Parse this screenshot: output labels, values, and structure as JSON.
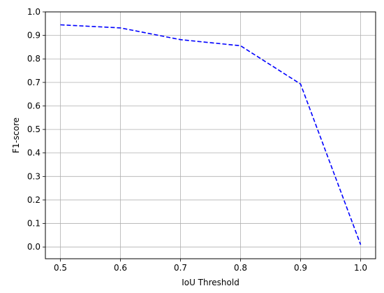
{
  "chart_data": {
    "type": "line",
    "title": "",
    "xlabel": "IoU Threshold",
    "ylabel": "F1-score",
    "xlim": [
      0.475,
      1.025
    ],
    "ylim": [
      -0.05,
      1.0
    ],
    "x_ticks": [
      0.5,
      0.6,
      0.7,
      0.8,
      0.9,
      1.0
    ],
    "x_tick_labels": [
      "0.5",
      "0.6",
      "0.7",
      "0.8",
      "0.9",
      "1.0"
    ],
    "y_ticks": [
      0.0,
      0.1,
      0.2,
      0.3,
      0.4,
      0.5,
      0.6,
      0.7,
      0.8,
      0.9,
      1.0
    ],
    "y_tick_labels": [
      "0.0",
      "0.1",
      "0.2",
      "0.3",
      "0.4",
      "0.5",
      "0.6",
      "0.7",
      "0.8",
      "0.9",
      "1.0"
    ],
    "grid": true,
    "legend": "none",
    "series": [
      {
        "x": [
          0.5,
          0.6,
          0.7,
          0.8,
          0.9,
          1.0
        ],
        "y": [
          0.945,
          0.932,
          0.882,
          0.856,
          0.693,
          0.01
        ],
        "color": "#0000ff",
        "line_style": "dashed"
      }
    ]
  }
}
